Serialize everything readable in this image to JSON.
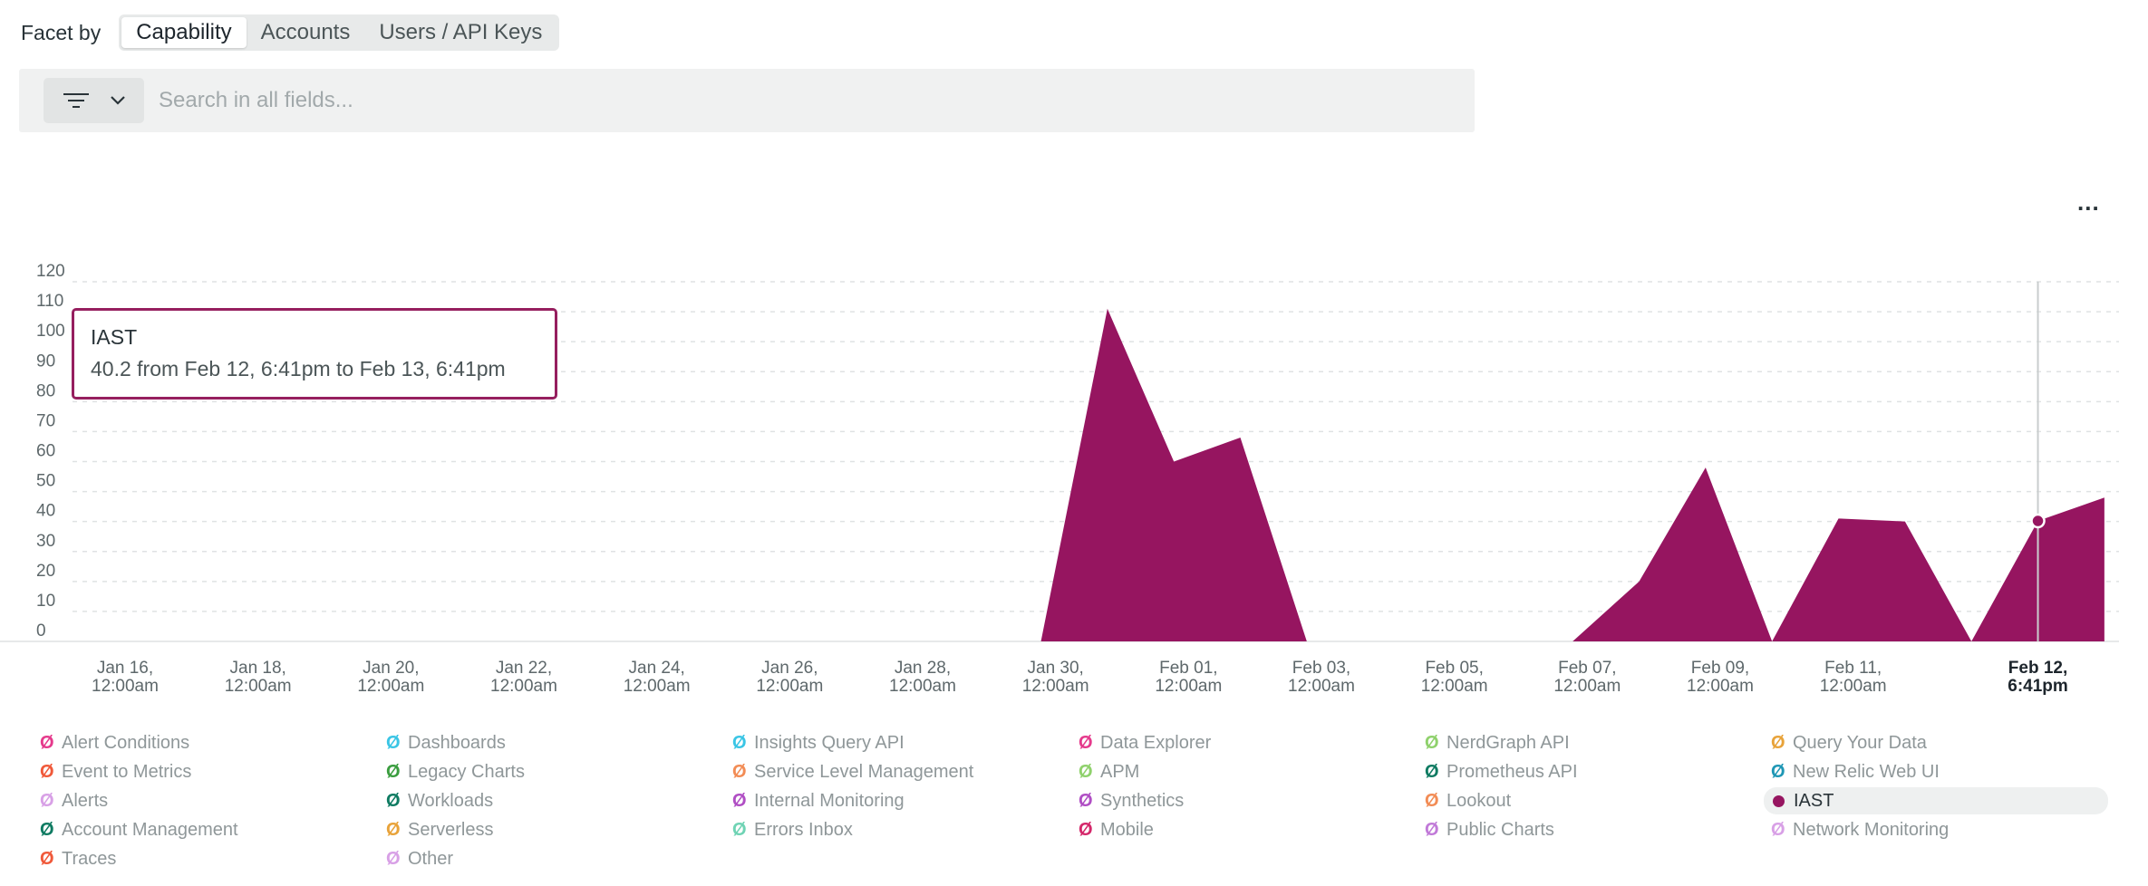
{
  "facet": {
    "label": "Facet by",
    "options": [
      {
        "label": "Capability",
        "active": true
      },
      {
        "label": "Accounts",
        "active": false
      },
      {
        "label": "Users / API Keys",
        "active": false
      }
    ]
  },
  "search": {
    "placeholder": "Search in all fields...",
    "value": "",
    "filter_icon": "filter-icon",
    "dropdown_icon": "chevron-down-icon"
  },
  "menu": {
    "more_label": "..."
  },
  "tooltip": {
    "series": "IAST",
    "text": "40.2 from Feb 12, 6:41pm to Feb 13, 6:41pm"
  },
  "chart_data": {
    "type": "area",
    "title": "",
    "xlabel": "",
    "ylabel": "",
    "ylim": [
      0,
      120
    ],
    "y_ticks": [
      0,
      10,
      20,
      30,
      40,
      50,
      60,
      70,
      80,
      90,
      100,
      110,
      120
    ],
    "grid": true,
    "x_ticks": [
      {
        "day": "Jan 16,",
        "time": "12:00am"
      },
      {
        "day": "Jan 18,",
        "time": "12:00am"
      },
      {
        "day": "Jan 20,",
        "time": "12:00am"
      },
      {
        "day": "Jan 22,",
        "time": "12:00am"
      },
      {
        "day": "Jan 24,",
        "time": "12:00am"
      },
      {
        "day": "Jan 26,",
        "time": "12:00am"
      },
      {
        "day": "Jan 28,",
        "time": "12:00am"
      },
      {
        "day": "Jan 30,",
        "time": "12:00am"
      },
      {
        "day": "Feb 01,",
        "time": "12:00am"
      },
      {
        "day": "Feb 03,",
        "time": "12:00am"
      },
      {
        "day": "Feb 05,",
        "time": "12:00am"
      },
      {
        "day": "Feb 07,",
        "time": "12:00am"
      },
      {
        "day": "Feb 09,",
        "time": "12:00am"
      },
      {
        "day": "Feb 11,",
        "time": "12:00am"
      },
      {
        "day": "Feb 12,",
        "time": "6:41pm",
        "current": true
      }
    ],
    "series": [
      {
        "name": "IAST",
        "color": "#961560",
        "x_unit": "days since Jan 16, 12:00am",
        "points": [
          [
            0,
            0
          ],
          [
            1,
            0
          ],
          [
            2,
            0
          ],
          [
            3,
            0
          ],
          [
            4,
            0
          ],
          [
            5,
            0
          ],
          [
            6,
            0
          ],
          [
            7,
            0
          ],
          [
            8,
            0
          ],
          [
            9,
            0
          ],
          [
            10,
            0
          ],
          [
            11,
            0
          ],
          [
            12,
            0
          ],
          [
            13,
            0
          ],
          [
            13.78,
            0
          ],
          [
            14.78,
            111
          ],
          [
            15.78,
            60
          ],
          [
            16.78,
            68
          ],
          [
            17.78,
            0
          ],
          [
            18.78,
            0
          ],
          [
            19.78,
            0
          ],
          [
            20.78,
            0
          ],
          [
            21.78,
            0
          ],
          [
            22.78,
            20
          ],
          [
            23.78,
            58
          ],
          [
            24.78,
            0
          ],
          [
            25.78,
            41
          ],
          [
            26.78,
            40
          ],
          [
            27.78,
            0
          ],
          [
            28.78,
            40.2
          ],
          [
            29.78,
            48
          ]
        ]
      }
    ],
    "hover": {
      "series": "IAST",
      "x": 28.78,
      "y": 40.2
    }
  },
  "legend": [
    {
      "label": "Alert Conditions",
      "color": "#e53a8c"
    },
    {
      "label": "Dashboards",
      "color": "#3ac5e5"
    },
    {
      "label": "Insights Query API",
      "color": "#3ac5e5"
    },
    {
      "label": "Data Explorer",
      "color": "#e53a8c"
    },
    {
      "label": "NerdGraph API",
      "color": "#8fd16c"
    },
    {
      "label": "Query Your Data",
      "color": "#e8a33a"
    },
    {
      "label": "Event to Metrics",
      "color": "#f0593a"
    },
    {
      "label": "Legacy Charts",
      "color": "#3a9d3f"
    },
    {
      "label": "Service Level Management",
      "color": "#f28c55"
    },
    {
      "label": "APM",
      "color": "#8fd16c"
    },
    {
      "label": "Prometheus API",
      "color": "#0f7b62"
    },
    {
      "label": "New Relic Web UI",
      "color": "#1f97b5"
    },
    {
      "label": "Alerts",
      "color": "#d8a0e6"
    },
    {
      "label": "Workloads",
      "color": "#0f7b62"
    },
    {
      "label": "Internal Monitoring",
      "color": "#b04ec4"
    },
    {
      "label": "Synthetics",
      "color": "#b04ec4"
    },
    {
      "label": "Lookout",
      "color": "#f28c55"
    },
    {
      "label": "IAST",
      "color": "#961560",
      "active": true
    },
    {
      "label": "Account Management",
      "color": "#0f7b62"
    },
    {
      "label": "Serverless",
      "color": "#e8a33a"
    },
    {
      "label": "Errors Inbox",
      "color": "#6fd3b4"
    },
    {
      "label": "Mobile",
      "color": "#d4276a"
    },
    {
      "label": "Public Charts",
      "color": "#c17ad8"
    },
    {
      "label": "Network Monitoring",
      "color": "#d8a0e6"
    },
    {
      "label": "Traces",
      "color": "#f0593a"
    },
    {
      "label": "Other",
      "color": "#d8a0e6"
    }
  ]
}
